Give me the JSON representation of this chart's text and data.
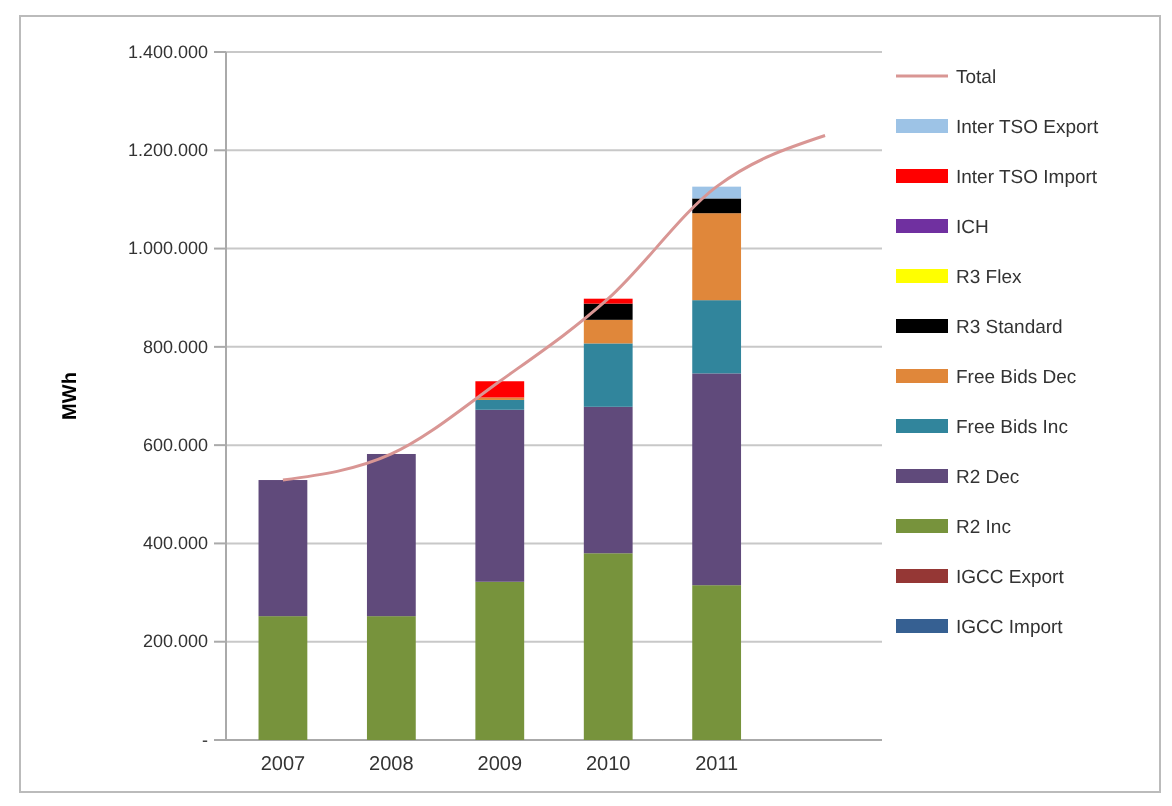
{
  "chart_data": {
    "type": "bar",
    "stacked": true,
    "ylabel": "MWh",
    "categories": [
      "2007",
      "2008",
      "2009",
      "2010",
      "2011",
      null
    ],
    "series": [
      {
        "name": "IGCC Import",
        "color": "#366092",
        "values": [
          null,
          null,
          null,
          null,
          null,
          null
        ]
      },
      {
        "name": "IGCC Export",
        "color": "#953735",
        "values": [
          null,
          null,
          null,
          null,
          null,
          null
        ]
      },
      {
        "name": "R2 Inc",
        "color": "#77933c",
        "values": [
          252000,
          252000,
          322000,
          380000,
          315000,
          null
        ]
      },
      {
        "name": "R2 Dec",
        "color": "#604a7b",
        "values": [
          277000,
          330000,
          350000,
          298000,
          431000,
          null
        ]
      },
      {
        "name": "Free Bids Inc",
        "color": "#31859c",
        "values": [
          null,
          null,
          20000,
          129000,
          149000,
          null
        ]
      },
      {
        "name": "Free Bids Dec",
        "color": "#e0873a",
        "values": [
          null,
          null,
          5000,
          48000,
          177000,
          null
        ]
      },
      {
        "name": "R3 Standard",
        "color": "#000000",
        "values": [
          null,
          null,
          null,
          33000,
          30000,
          null
        ]
      },
      {
        "name": "R3 Flex",
        "color": "#ffff00",
        "values": [
          null,
          null,
          null,
          null,
          null,
          null
        ]
      },
      {
        "name": "ICH",
        "color": "#7030a0",
        "values": [
          null,
          null,
          null,
          null,
          null,
          null
        ]
      },
      {
        "name": "Inter TSO Import",
        "color": "#ff0000",
        "values": [
          null,
          null,
          33000,
          10000,
          null,
          null
        ]
      },
      {
        "name": "Inter TSO Export",
        "color": "#9dc3e6",
        "values": [
          null,
          null,
          null,
          null,
          24000,
          null
        ]
      },
      {
        "name": "Total",
        "type": "line",
        "color": "#d99694",
        "values": [
          529000,
          582000,
          730000,
          898000,
          1126000,
          1230000
        ]
      }
    ],
    "ylim": [
      0,
      1400000
    ],
    "yticks": [
      {
        "value": 0,
        "label": "-"
      },
      {
        "value": 200000,
        "label": "200.000"
      },
      {
        "value": 400000,
        "label": "400.000"
      },
      {
        "value": 600000,
        "label": "600.000"
      },
      {
        "value": 800000,
        "label": "800.000"
      },
      {
        "value": 1000000,
        "label": "1.000.000"
      },
      {
        "value": 1200000,
        "label": "1.200.000"
      },
      {
        "value": 1400000,
        "label": "1.400.000"
      }
    ],
    "grid": "y",
    "legend": "right",
    "marker": "none",
    "line_style": "solid"
  }
}
